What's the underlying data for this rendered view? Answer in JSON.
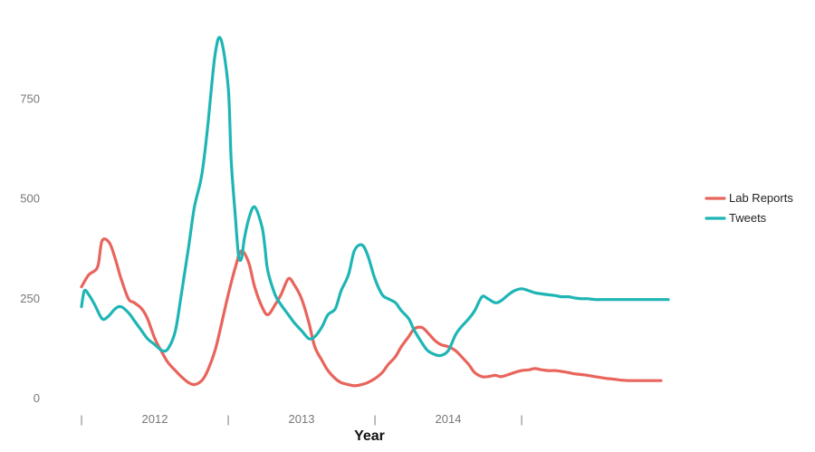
{
  "chart_data": {
    "type": "line",
    "title": "",
    "xlabel": "Year",
    "ylabel": "",
    "xlim": [
      2011.0,
      2015.0
    ],
    "ylim": [
      0,
      930
    ],
    "y_ticks": [
      0,
      250,
      500,
      750
    ],
    "x_ticks": [
      2011.0,
      2011.5,
      2012.0,
      2012.5,
      2013.0,
      2013.5,
      2014.0,
      2014.5,
      2015.0
    ],
    "x_tick_labels": [
      "|",
      "2012",
      "|",
      "2013",
      "|",
      "2014",
      "|"
    ],
    "grid": false,
    "legend_position": "right",
    "series": [
      {
        "name": "Lab Reports",
        "color": "#e8645c",
        "x": [
          2011.0,
          2011.05,
          2011.11,
          2011.14,
          2011.19,
          2011.23,
          2011.27,
          2011.32,
          2011.36,
          2011.41,
          2011.45,
          2011.5,
          2011.55,
          2011.59,
          2011.64,
          2011.68,
          2011.73,
          2011.77,
          2011.82,
          2011.86,
          2011.91,
          2011.95,
          2012.0,
          2012.05,
          2012.09,
          2012.14,
          2012.18,
          2012.23,
          2012.27,
          2012.32,
          2012.36,
          2012.41,
          2012.45,
          2012.5,
          2012.55,
          2012.59,
          2012.64,
          2012.68,
          2012.73,
          2012.77,
          2012.82,
          2012.86,
          2012.91,
          2012.95,
          2013.0,
          2013.05,
          2013.09,
          2013.14,
          2013.18,
          2013.23,
          2013.27,
          2013.32,
          2013.36,
          2013.41,
          2013.45,
          2013.5,
          2013.55,
          2013.59,
          2013.64,
          2013.68,
          2013.73,
          2013.77,
          2013.82,
          2013.86,
          2013.91,
          2013.95,
          2014.0,
          2014.05,
          2014.09,
          2014.14,
          2014.18,
          2014.23,
          2014.27,
          2014.32,
          2014.36,
          2014.41,
          2014.45,
          2014.5,
          2014.55,
          2014.59,
          2014.64,
          2014.68,
          2014.73,
          2014.77,
          2014.82,
          2014.86,
          2014.91,
          2014.95
        ],
        "values": [
          280,
          310,
          330,
          395,
          390,
          350,
          300,
          250,
          240,
          225,
          200,
          150,
          115,
          90,
          70,
          55,
          40,
          35,
          45,
          70,
          120,
          180,
          260,
          330,
          370,
          340,
          280,
          230,
          210,
          235,
          260,
          300,
          285,
          250,
          190,
          130,
          95,
          70,
          50,
          40,
          35,
          32,
          35,
          40,
          50,
          65,
          85,
          105,
          130,
          155,
          175,
          178,
          165,
          145,
          135,
          130,
          120,
          105,
          85,
          65,
          55,
          55,
          58,
          55,
          60,
          65,
          70,
          72,
          75,
          72,
          70,
          70,
          68,
          65,
          62,
          60,
          58,
          55,
          52,
          50,
          48,
          46,
          45,
          45,
          45,
          45,
          45,
          45
        ]
      },
      {
        "name": "Tweets",
        "color": "#1fb5b5",
        "x": [
          2011.0,
          2011.02,
          2011.05,
          2011.09,
          2011.14,
          2011.18,
          2011.23,
          2011.27,
          2011.32,
          2011.36,
          2011.41,
          2011.45,
          2011.5,
          2011.55,
          2011.59,
          2011.64,
          2011.68,
          2011.73,
          2011.77,
          2011.82,
          2011.86,
          2011.91,
          2011.95,
          2012.0,
          2012.02,
          2012.05,
          2012.07,
          2012.09,
          2012.11,
          2012.14,
          2012.18,
          2012.23,
          2012.25,
          2012.27,
          2012.32,
          2012.36,
          2012.41,
          2012.45,
          2012.5,
          2012.55,
          2012.59,
          2012.64,
          2012.68,
          2012.73,
          2012.77,
          2012.82,
          2012.86,
          2012.91,
          2012.95,
          2013.0,
          2013.05,
          2013.09,
          2013.14,
          2013.18,
          2013.23,
          2013.27,
          2013.32,
          2013.36,
          2013.41,
          2013.45,
          2013.5,
          2013.55,
          2013.59,
          2013.64,
          2013.68,
          2013.73,
          2013.77,
          2013.82,
          2013.86,
          2013.91,
          2013.95,
          2014.0,
          2014.05,
          2014.09,
          2014.14,
          2014.18,
          2014.23,
          2014.27,
          2014.32,
          2014.36,
          2014.41,
          2014.45,
          2014.5,
          2014.55,
          2014.59,
          2014.64,
          2014.68,
          2014.73,
          2014.77,
          2014.82,
          2014.86,
          2014.91,
          2014.95,
          2015.0
        ],
        "values": [
          230,
          270,
          260,
          235,
          200,
          205,
          225,
          230,
          215,
          195,
          170,
          150,
          135,
          120,
          125,
          170,
          260,
          380,
          480,
          560,
          680,
          860,
          900,
          780,
          600,
          450,
          360,
          350,
          400,
          450,
          480,
          430,
          380,
          320,
          260,
          235,
          210,
          190,
          170,
          150,
          155,
          180,
          210,
          225,
          270,
          310,
          370,
          385,
          360,
          300,
          260,
          250,
          240,
          220,
          200,
          170,
          140,
          120,
          110,
          108,
          120,
          160,
          180,
          200,
          220,
          255,
          250,
          240,
          245,
          260,
          270,
          275,
          270,
          265,
          262,
          260,
          258,
          255,
          255,
          252,
          250,
          250,
          248,
          248,
          248,
          248,
          248,
          248,
          248,
          248,
          248,
          248,
          248,
          248
        ]
      }
    ]
  }
}
